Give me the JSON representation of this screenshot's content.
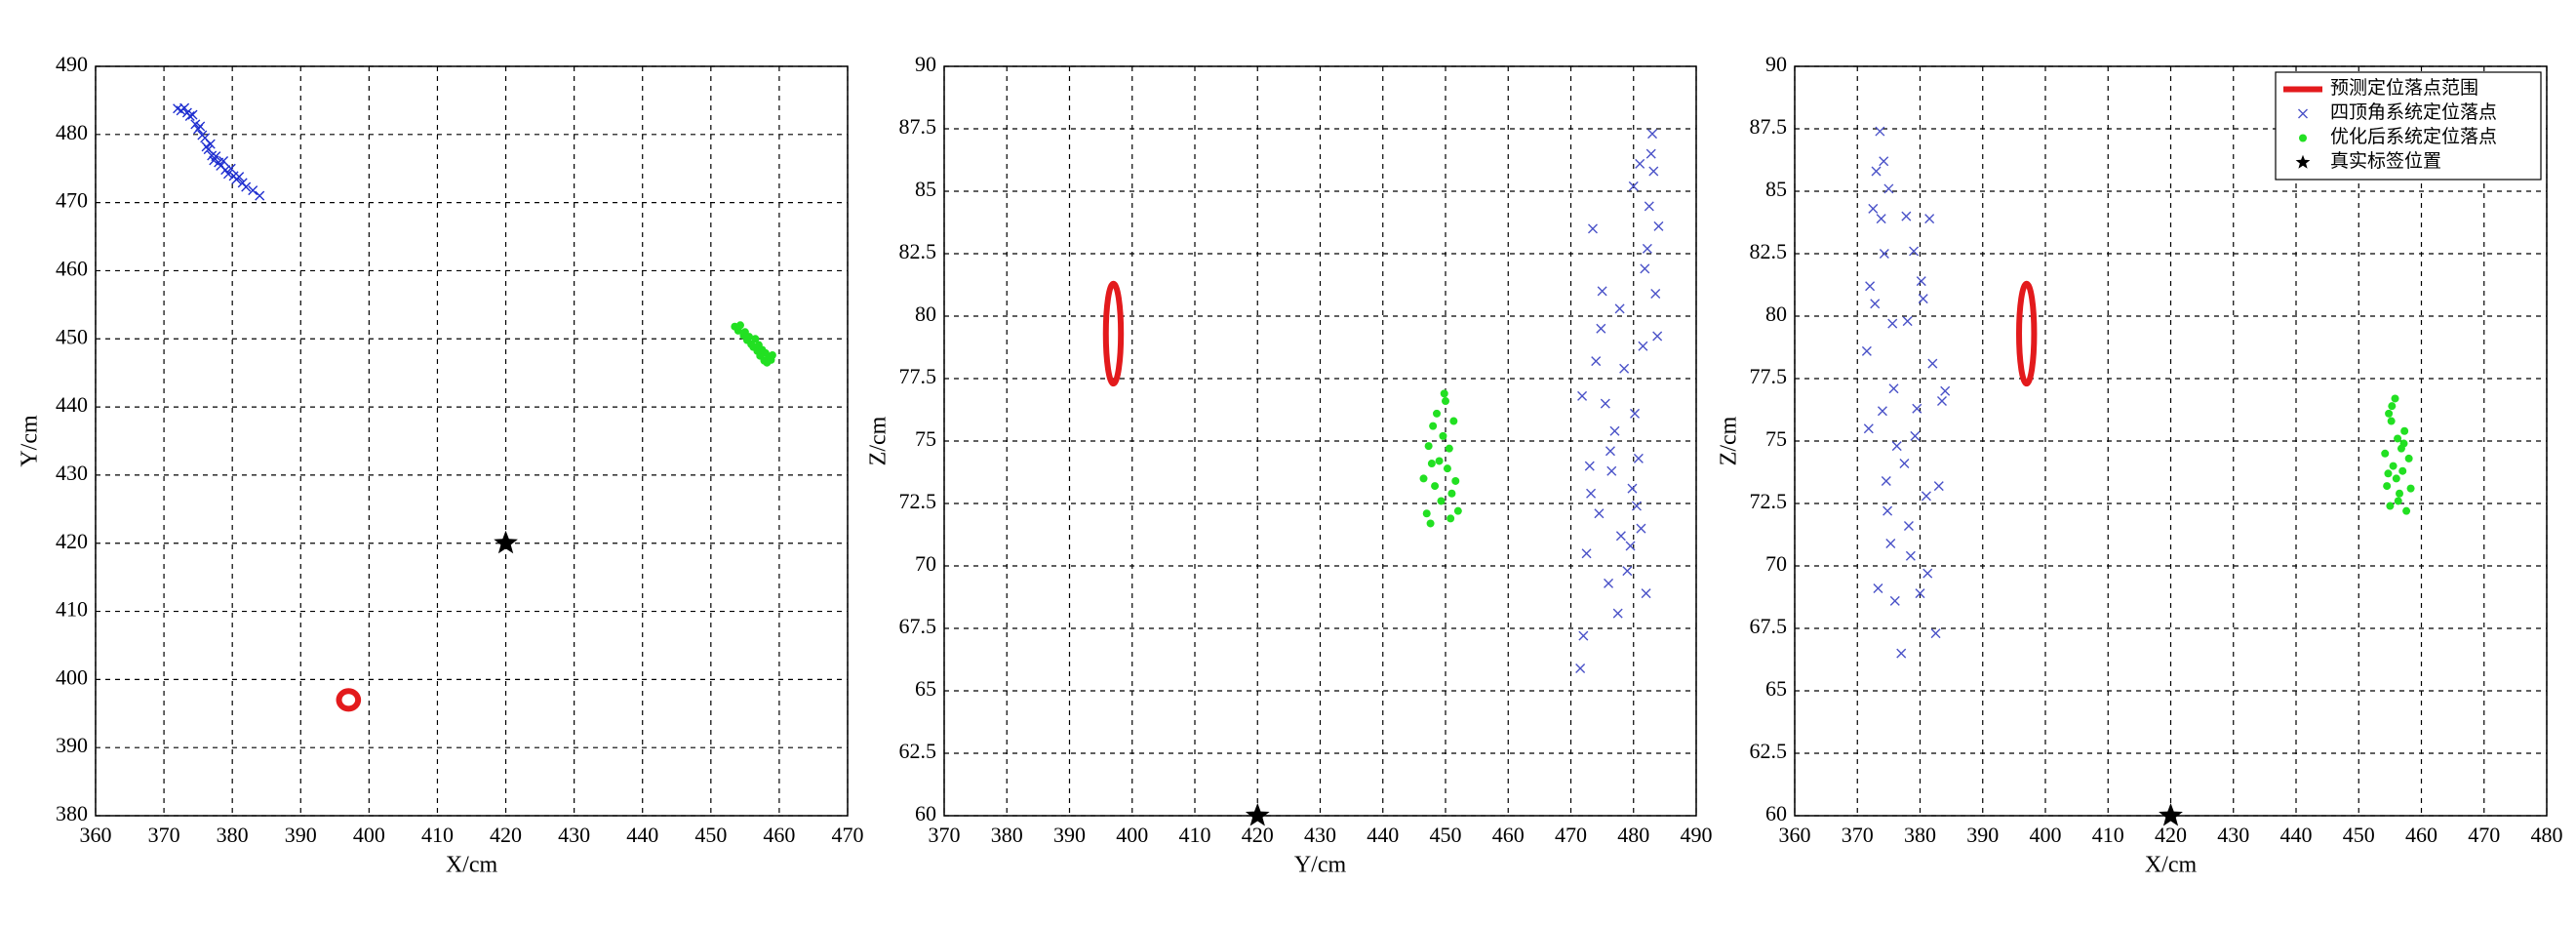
{
  "chart_data": [
    {
      "type": "scatter",
      "xlabel": "X/cm",
      "ylabel": "Y/cm",
      "xlim": [
        360,
        470
      ],
      "xticks": [
        360,
        370,
        380,
        390,
        400,
        410,
        420,
        430,
        440,
        450,
        460,
        470
      ],
      "ylim": [
        380,
        490
      ],
      "yticks": [
        380,
        390,
        400,
        410,
        420,
        430,
        440,
        450,
        460,
        470,
        480,
        490
      ],
      "grid": true,
      "series": [
        {
          "color": "#e31a1c",
          "marker": "ellipse",
          "x": [
            397
          ],
          "values": [
            397
          ],
          "x_radius": [
            1.4
          ],
          "y_radius": [
            1.3
          ]
        },
        {
          "color": "#1f2fd0",
          "marker": "x",
          "x": [
            372,
            372.5,
            373,
            373.4,
            373.8,
            374.2,
            374.6,
            375,
            375.3,
            375.6,
            376,
            376.2,
            376.5,
            376.8,
            377,
            377.3,
            377.6,
            378,
            378.3,
            378.7,
            379,
            379.4,
            379.8,
            380.2,
            380.6,
            381,
            381.5,
            382,
            383,
            384
          ],
          "values": [
            483.8,
            483.5,
            483.9,
            483.2,
            482.7,
            482.9,
            481.5,
            480.8,
            481.2,
            479.9,
            479.5,
            478.2,
            477.8,
            478.6,
            476.9,
            476.2,
            476.8,
            475.9,
            475.4,
            476.1,
            474.8,
            474.2,
            475.0,
            473.9,
            473.4,
            473.8,
            472.9,
            472.3,
            471.8,
            471.0
          ]
        },
        {
          "color": "#22e022",
          "marker": "dot",
          "x": [
            453.5,
            454,
            454.3,
            454.8,
            455,
            455.3,
            455.6,
            455.9,
            456.2,
            456.5,
            456.8,
            457,
            457.2,
            457.5,
            457.8,
            458,
            458.2,
            458.5,
            458.8,
            459
          ],
          "values": [
            451.8,
            451.2,
            452,
            450.5,
            451,
            449.8,
            450.3,
            449.2,
            448.8,
            450,
            448.2,
            449.1,
            447.5,
            448.4,
            446.8,
            447.9,
            446.5,
            447.2,
            446.9,
            447.6
          ]
        },
        {
          "color": "#000000",
          "marker": "star",
          "x": [
            420
          ],
          "values": [
            420
          ]
        }
      ]
    },
    {
      "type": "scatter",
      "xlabel": "Y/cm",
      "ylabel": "Z/cm",
      "xlim": [
        370,
        490
      ],
      "xticks": [
        370,
        380,
        390,
        400,
        410,
        420,
        430,
        440,
        450,
        460,
        470,
        480,
        490
      ],
      "ylim": [
        60,
        90
      ],
      "yticks": [
        60,
        62.5,
        65,
        67.5,
        70,
        72.5,
        75,
        77.5,
        80,
        82.5,
        85,
        87.5,
        90
      ],
      "grid": true,
      "series": [
        {
          "color": "#e31a1c",
          "marker": "ellipse",
          "x": [
            397
          ],
          "values": [
            79.3
          ],
          "x_radius": [
            1.2
          ],
          "y_radius": [
            2.0
          ]
        },
        {
          "color": "#4a52c8",
          "marker": "x",
          "x": [
            471.5,
            472,
            472.5,
            473,
            473.5,
            474,
            474.5,
            475,
            475.5,
            476,
            476.5,
            477,
            477.5,
            478,
            478.5,
            479,
            471.8,
            473.2,
            474.8,
            476.3,
            477.8,
            479.5,
            480,
            480.5,
            481,
            481.5,
            482,
            482.5,
            483,
            483.5,
            484,
            480.2,
            481.2,
            482.2,
            483.2,
            483.8,
            480.8,
            482.8,
            479.8,
            481.8
          ],
          "values": [
            65.9,
            67.2,
            70.5,
            74,
            83.5,
            78.2,
            72.1,
            81,
            76.5,
            69.3,
            73.8,
            75.4,
            68.1,
            71.2,
            77.9,
            69.8,
            76.8,
            72.9,
            79.5,
            74.6,
            80.3,
            70.8,
            85.2,
            72.4,
            86.1,
            78.8,
            68.9,
            84.4,
            87.3,
            80.9,
            83.6,
            76.1,
            71.5,
            82.7,
            85.8,
            79.2,
            74.3,
            86.5,
            73.1,
            81.9
          ]
        },
        {
          "color": "#22e022",
          "marker": "dot",
          "x": [
            446.5,
            447,
            447.3,
            447.6,
            448,
            448.3,
            448.6,
            449,
            449.3,
            449.6,
            450,
            450.3,
            450.6,
            451,
            451.3,
            451.6,
            452,
            447.8,
            449.8,
            450.8
          ],
          "values": [
            73.5,
            72.1,
            74.8,
            71.7,
            75.6,
            73.2,
            76.1,
            74.2,
            72.6,
            75.2,
            76.6,
            73.9,
            74.7,
            72.9,
            75.8,
            73.4,
            72.2,
            74.1,
            76.9,
            71.9
          ]
        },
        {
          "color": "#000000",
          "marker": "star",
          "x": [
            420
          ],
          "values": [
            60
          ]
        }
      ]
    },
    {
      "type": "scatter",
      "xlabel": "X/cm",
      "ylabel": "Z/cm",
      "xlim": [
        360,
        480
      ],
      "xticks": [
        360,
        370,
        380,
        390,
        400,
        410,
        420,
        430,
        440,
        450,
        460,
        470,
        480
      ],
      "ylim": [
        60,
        90
      ],
      "yticks": [
        60,
        62.5,
        65,
        67.5,
        70,
        72.5,
        75,
        77.5,
        80,
        82.5,
        85,
        87.5,
        90
      ],
      "grid": true,
      "legend": "upper right",
      "series": [
        {
          "name": "预测定位落点范围",
          "color": "#e31a1c",
          "marker": "ellipse",
          "x": [
            397
          ],
          "values": [
            79.3
          ],
          "x_radius": [
            1.2
          ],
          "y_radius": [
            2.0
          ]
        },
        {
          "name": "四顶角系统定位落点",
          "color": "#4a52c8",
          "marker": "x",
          "x": [
            371.5,
            372,
            372.5,
            373,
            373.3,
            373.6,
            374,
            374.3,
            374.6,
            375,
            375.3,
            375.6,
            376,
            376.3,
            372.8,
            374.8,
            373.8,
            375.8,
            371.8,
            374.2,
            377,
            377.5,
            378,
            378.5,
            379,
            379.5,
            380,
            380.5,
            381,
            381.5,
            382,
            382.5,
            383,
            383.5,
            384,
            378.2,
            379.2,
            380.2,
            381.2,
            377.8
          ],
          "values": [
            78.6,
            81.2,
            84.3,
            85.8,
            69.1,
            87.4,
            76.2,
            82.5,
            73.4,
            85.1,
            70.9,
            79.7,
            68.6,
            74.8,
            80.5,
            72.2,
            83.9,
            77.1,
            75.5,
            86.2,
            66.5,
            74.1,
            79.8,
            70.4,
            82.6,
            76.3,
            68.9,
            80.7,
            72.8,
            83.9,
            78.1,
            67.3,
            73.2,
            76.6,
            77.0,
            71.6,
            75.2,
            81.4,
            69.7,
            84.0
          ]
        },
        {
          "name": "优化后系统定位落点",
          "color": "#22e022",
          "marker": "dot",
          "x": [
            454.2,
            454.5,
            454.8,
            455,
            455.2,
            455.5,
            455.8,
            456,
            456.2,
            456.5,
            456.8,
            457,
            457.3,
            457.6,
            458,
            458.3,
            455.3,
            456.3,
            457.2,
            454.7
          ],
          "values": [
            74.5,
            73.2,
            76.1,
            72.4,
            75.8,
            74.0,
            76.7,
            73.5,
            75.1,
            72.9,
            74.7,
            73.8,
            75.4,
            72.2,
            74.3,
            73.1,
            76.4,
            72.6,
            74.9,
            73.7
          ]
        },
        {
          "name": "真实标签位置",
          "color": "#000000",
          "marker": "star",
          "x": [
            420
          ],
          "values": [
            60
          ]
        }
      ]
    }
  ]
}
